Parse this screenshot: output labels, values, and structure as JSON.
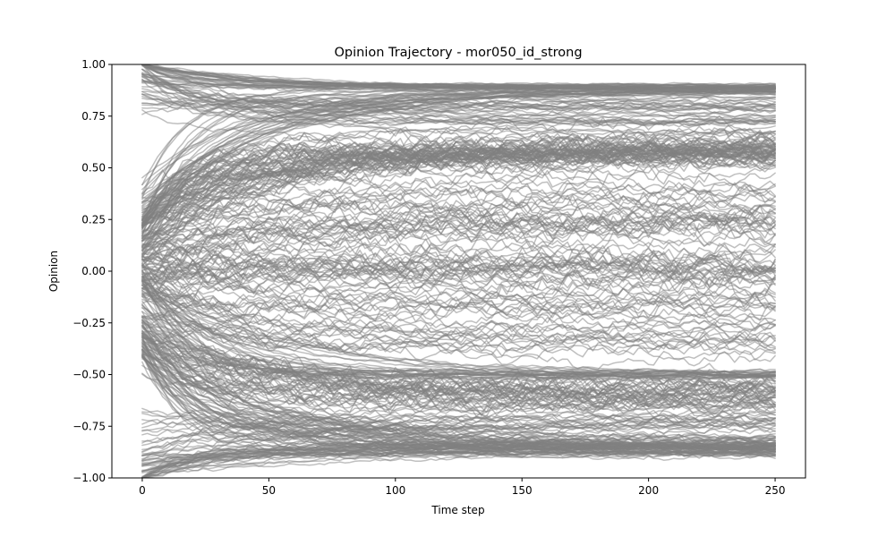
{
  "chart_data": {
    "type": "line",
    "title": "Opinion Trajectory - mor050_id_strong",
    "xlabel": "Time step",
    "ylabel": "Opinion",
    "xlim": [
      -12,
      262
    ],
    "ylim": [
      -1.0,
      1.0
    ],
    "xticks": [
      0,
      50,
      100,
      150,
      200,
      250
    ],
    "xtick_labels": [
      "0",
      "50",
      "100",
      "150",
      "200",
      "250"
    ],
    "yticks": [
      -1.0,
      -0.75,
      -0.5,
      -0.25,
      0.0,
      0.25,
      0.5,
      0.75,
      1.0
    ],
    "ytick_labels": [
      "−1.00",
      "−0.75",
      "−0.50",
      "−0.25",
      "0.00",
      "0.25",
      "0.50",
      "0.75",
      "1.00"
    ],
    "grid": false,
    "legend": "none",
    "line_color": "#808080",
    "line_alpha": 0.5,
    "x_range": [
      0,
      250
    ],
    "series_groups": [
      {
        "count": 30,
        "start": 1.0,
        "end": 0.89,
        "spread": 0.015,
        "noise": 0.004
      },
      {
        "count": 28,
        "start": 0.3,
        "end": 0.87,
        "spread": 0.02,
        "noise": 0.005
      },
      {
        "count": 20,
        "start": 0.9,
        "end": 0.8,
        "spread": 0.05,
        "noise": 0.01
      },
      {
        "count": 12,
        "start": 0.95,
        "end": 0.7,
        "spread": 0.06,
        "noise": 0.01
      },
      {
        "count": 45,
        "start": 0.25,
        "end": 0.57,
        "spread": 0.06,
        "noise": 0.03
      },
      {
        "count": 20,
        "start": 0.2,
        "end": 0.6,
        "spread": 0.08,
        "noise": 0.025
      },
      {
        "count": 15,
        "start": 0.1,
        "end": 0.35,
        "spread": 0.1,
        "noise": 0.03
      },
      {
        "count": 20,
        "start": 0.05,
        "end": 0.2,
        "spread": 0.1,
        "noise": 0.035
      },
      {
        "count": 25,
        "start": 0.0,
        "end": 0.0,
        "spread": 0.1,
        "noise": 0.035
      },
      {
        "count": 15,
        "start": -0.1,
        "end": -0.15,
        "spread": 0.08,
        "noise": 0.03
      },
      {
        "count": 25,
        "start": -0.05,
        "end": -0.5,
        "spread": 0.02,
        "noise": 0.006
      },
      {
        "count": 15,
        "start": -0.15,
        "end": -0.35,
        "spread": 0.06,
        "noise": 0.025
      },
      {
        "count": 40,
        "start": -0.3,
        "end": -0.6,
        "spread": 0.06,
        "noise": 0.03
      },
      {
        "count": 45,
        "start": -0.35,
        "end": -0.84,
        "spread": 0.04,
        "noise": 0.012
      },
      {
        "count": 35,
        "start": -1.0,
        "end": -0.86,
        "spread": 0.025,
        "noise": 0.008
      },
      {
        "count": 20,
        "start": -0.8,
        "end": -0.72,
        "spread": 0.05,
        "noise": 0.015
      }
    ]
  }
}
